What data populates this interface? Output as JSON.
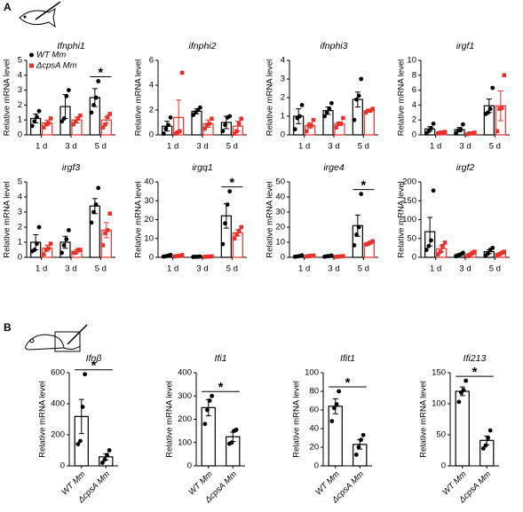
{
  "panel_labels": [
    "A",
    "B"
  ],
  "chart_data": [
    {
      "type": "bar",
      "title": "Ifnphi1",
      "ylabel": "Relative mRNA level",
      "categories": [
        "1 d",
        "3 d",
        "5 d"
      ],
      "ylim": [
        0,
        5
      ],
      "yticks": [
        0,
        1,
        2,
        3,
        4,
        5
      ],
      "series": [
        {
          "name": "WT Mm",
          "color": "#000000",
          "marker": "circle",
          "values": [
            1.1,
            1.9,
            2.5
          ],
          "errors": [
            0.3,
            0.8,
            0.6
          ],
          "points": [
            [
              0.6,
              0.9,
              1.2,
              1.6
            ],
            [
              0.9,
              1.1,
              2.6,
              3.0
            ],
            [
              1.5,
              2.0,
              2.5,
              3.6
            ]
          ]
        },
        {
          "name": "ΔcpsA Mm",
          "color": "#e8312a",
          "marker": "square",
          "values": [
            0.8,
            1.0,
            1.0
          ],
          "errors": [
            0.2,
            0.2,
            0.2
          ],
          "points": [
            [
              0.5,
              0.7,
              0.8,
              1.1
            ],
            [
              0.7,
              0.9,
              1.1,
              1.3
            ],
            [
              0.5,
              0.7,
              1.2,
              1.4
            ]
          ]
        }
      ],
      "annotations": [
        {
          "text": "*",
          "category": "5 d"
        }
      ]
    },
    {
      "type": "bar",
      "title": "ifnphi2",
      "ylabel": "Relative mRNA level",
      "categories": [
        "1 d",
        "3 d",
        "5 d"
      ],
      "ylim": [
        0,
        6
      ],
      "yticks": [
        0,
        2,
        4,
        6
      ],
      "series": [
        {
          "color": "#000000",
          "marker": "circle",
          "values": [
            0.7,
            1.9,
            1.0
          ],
          "errors": [
            0.4,
            0.2,
            0.5
          ],
          "points": [
            [
              0.1,
              0.5,
              0.8,
              1.4
            ],
            [
              1.6,
              1.8,
              2.0,
              2.2
            ],
            [
              0.3,
              0.8,
              1.4,
              1.5
            ]
          ]
        },
        {
          "color": "#e8312a",
          "marker": "square",
          "values": [
            1.4,
            0.9,
            0.7
          ],
          "errors": [
            1.4,
            0.3,
            0.4
          ],
          "points": [
            [
              0.1,
              0.2,
              0.3,
              5.0
            ],
            [
              0.5,
              0.8,
              0.9,
              1.3
            ],
            [
              0.1,
              0.3,
              0.9,
              1.3
            ]
          ]
        }
      ]
    },
    {
      "type": "bar",
      "title": "ifnphi3",
      "ylabel": "Relative mRNA level",
      "categories": [
        "1 d",
        "3 d",
        "5 d"
      ],
      "ylim": [
        0,
        4
      ],
      "yticks": [
        0,
        1,
        2,
        3,
        4
      ],
      "series": [
        {
          "color": "#000000",
          "marker": "circle",
          "values": [
            1.0,
            1.3,
            1.9
          ],
          "errors": [
            0.4,
            0.2,
            0.4
          ],
          "points": [
            [
              0.3,
              0.9,
              1.0,
              1.6
            ],
            [
              1.0,
              1.2,
              1.4,
              1.7
            ],
            [
              0.8,
              1.9,
              2.1,
              3.0
            ]
          ]
        },
        {
          "color": "#e8312a",
          "marker": "square",
          "values": [
            0.5,
            0.6,
            1.3
          ],
          "errors": [
            0.15,
            0.1,
            0.05
          ],
          "points": [
            [
              0.2,
              0.5,
              0.5,
              0.8
            ],
            [
              0.4,
              0.6,
              0.6,
              0.9
            ],
            [
              1.2,
              1.3,
              1.3,
              1.4
            ]
          ]
        }
      ]
    },
    {
      "type": "bar",
      "title": "irgf1",
      "ylabel": "Relative mRNA level",
      "categories": [
        "1 d",
        "3 d",
        "5 d"
      ],
      "ylim": [
        0,
        10
      ],
      "yticks": [
        0,
        2,
        4,
        6,
        8,
        10
      ],
      "series": [
        {
          "color": "#000000",
          "marker": "circle",
          "values": [
            0.8,
            0.7,
            3.9
          ],
          "errors": [
            0.3,
            0.3,
            0.9
          ],
          "points": [
            [
              0.2,
              0.5,
              0.9,
              1.5
            ],
            [
              0.2,
              0.6,
              0.7,
              1.4
            ],
            [
              2.8,
              3.0,
              3.5,
              6.3
            ]
          ]
        },
        {
          "color": "#e8312a",
          "marker": "square",
          "values": [
            0.3,
            0.2,
            3.9
          ],
          "errors": [
            0.1,
            0.1,
            2.0
          ],
          "points": [
            [
              0.2,
              0.3,
              0.3,
              0.4
            ],
            [
              0.1,
              0.2,
              0.2,
              0.3
            ],
            [
              0.5,
              3.5,
              3.6,
              8.0
            ]
          ]
        }
      ]
    },
    {
      "type": "bar",
      "title": "irgf3",
      "ylabel": "Relative mRNA level",
      "categories": [
        "1 d",
        "3 d",
        "5 d"
      ],
      "ylim": [
        0,
        5
      ],
      "yticks": [
        0,
        1,
        2,
        3,
        4,
        5
      ],
      "series": [
        {
          "color": "#000000",
          "marker": "circle",
          "values": [
            1.0,
            1.0,
            3.4
          ],
          "errors": [
            0.5,
            0.4,
            0.5
          ],
          "points": [
            [
              0.4,
              0.5,
              0.9,
              2.0
            ],
            [
              0.3,
              0.8,
              1.2,
              1.8
            ],
            [
              2.3,
              3.0,
              3.5,
              4.6
            ]
          ]
        },
        {
          "color": "#e8312a",
          "marker": "square",
          "values": [
            0.6,
            0.4,
            1.8
          ],
          "errors": [
            0.2,
            0.1,
            0.5
          ],
          "points": [
            [
              0.2,
              0.5,
              0.6,
              0.9
            ],
            [
              0.3,
              0.3,
              0.5,
              0.5
            ],
            [
              0.8,
              1.6,
              1.8,
              2.9
            ]
          ]
        }
      ]
    },
    {
      "type": "bar",
      "title": "irgq1",
      "ylabel": "Relative mRNA level",
      "categories": [
        "1 d",
        "3 d",
        "5 d"
      ],
      "ylim": [
        0,
        40
      ],
      "yticks": [
        0,
        10,
        20,
        30,
        40
      ],
      "series": [
        {
          "color": "#000000",
          "marker": "circle",
          "values": [
            0.8,
            0.3,
            22
          ],
          "errors": [
            0.3,
            0.1,
            6.5
          ],
          "points": [
            [
              0.4,
              0.6,
              0.9,
              1.3
            ],
            [
              0.2,
              0.3,
              0.3,
              0.4
            ],
            [
              7,
              18,
              28,
              35
            ]
          ]
        },
        {
          "color": "#e8312a",
          "marker": "square",
          "values": [
            0.8,
            0.4,
            13
          ],
          "errors": [
            0.3,
            0.1,
            1.5
          ],
          "points": [
            [
              0.5,
              0.7,
              0.8,
              1.2
            ],
            [
              0.3,
              0.4,
              0.4,
              0.5
            ],
            [
              10,
              12,
              14,
              16
            ]
          ]
        }
      ],
      "annotations": [
        {
          "text": "*",
          "category": "5 d"
        }
      ]
    },
    {
      "type": "bar",
      "title": "irge4",
      "ylabel": "Relative mRNA level",
      "categories": [
        "1 d",
        "3 d",
        "5 d"
      ],
      "ylim": [
        0,
        50
      ],
      "yticks": [
        0,
        10,
        20,
        30,
        40,
        50
      ],
      "series": [
        {
          "color": "#000000",
          "marker": "circle",
          "values": [
            0.8,
            0.8,
            21
          ],
          "errors": [
            0.3,
            0.3,
            7
          ],
          "points": [
            [
              0.4,
              0.6,
              0.9,
              1.3
            ],
            [
              0.4,
              0.7,
              0.9,
              1.2
            ],
            [
              8,
              15,
              20,
              42
            ]
          ]
        },
        {
          "color": "#e8312a",
          "marker": "square",
          "values": [
            0.9,
            0.6,
            9.5
          ],
          "errors": [
            0.2,
            0.2,
            0.6
          ],
          "points": [
            [
              0.6,
              0.8,
              1.0,
              1.2
            ],
            [
              0.4,
              0.5,
              0.7,
              0.8
            ],
            [
              8.5,
              9.0,
              9.8,
              10.7
            ]
          ]
        }
      ],
      "annotations": [
        {
          "text": "*",
          "category": "5 d"
        }
      ]
    },
    {
      "type": "bar",
      "title": "irgf2",
      "ylabel": "Relative mRNA level",
      "categories": [
        "1 d",
        "3 d",
        "5 d"
      ],
      "ylim": [
        0,
        200
      ],
      "yticks": [
        0,
        50,
        100,
        150,
        200
      ],
      "series": [
        {
          "color": "#000000",
          "marker": "circle",
          "values": [
            68,
            7,
            15
          ],
          "errors": [
            38,
            3,
            5
          ],
          "points": [
            [
              20,
              30,
              45,
              177
            ],
            [
              3,
              5,
              8,
              12
            ],
            [
              5,
              10,
              20,
              25
            ]
          ]
        },
        {
          "color": "#e8312a",
          "marker": "square",
          "values": [
            23,
            9,
            10
          ],
          "errors": [
            8,
            3,
            3
          ],
          "points": [
            [
              8,
              15,
              30,
              39
            ],
            [
              3,
              6,
              12,
              15
            ],
            [
              5,
              8,
              12,
              15
            ]
          ]
        }
      ]
    },
    {
      "type": "bar",
      "title": "Ifnβ",
      "ylabel": "Relative mRNA level",
      "categories": [
        "WT Mm",
        "ΔcpsA Mm"
      ],
      "ylim": [
        0,
        600
      ],
      "yticks": [
        0,
        200,
        400,
        600
      ],
      "series": [
        {
          "color": "#000000",
          "marker": "circle",
          "values": [
            318,
            58
          ],
          "errors": [
            110,
            20
          ],
          "points": [
            [
              140,
              160,
              380,
              590
            ],
            [
              20,
              40,
              70,
              100
            ]
          ]
        }
      ],
      "annotations": [
        {
          "text": "*"
        }
      ]
    },
    {
      "type": "bar",
      "title": "Ifi1",
      "ylabel": "Relative mRNA level",
      "categories": [
        "WT Mm",
        "ΔcpsA Mm"
      ],
      "ylim": [
        0,
        400
      ],
      "yticks": [
        0,
        100,
        200,
        300,
        400
      ],
      "series": [
        {
          "color": "#000000",
          "marker": "circle",
          "values": [
            250,
            125
          ],
          "errors": [
            35,
            20
          ],
          "points": [
            [
              180,
              240,
              280,
              300
            ],
            [
              95,
              100,
              150,
              155
            ]
          ]
        }
      ],
      "annotations": [
        {
          "text": "*"
        }
      ]
    },
    {
      "type": "bar",
      "title": "Ifit1",
      "ylabel": "Relative mRNA level",
      "categories": [
        "WT Mm",
        "ΔcpsA Mm"
      ],
      "ylim": [
        0,
        100
      ],
      "yticks": [
        0,
        20,
        40,
        60,
        80,
        100
      ],
      "series": [
        {
          "color": "#000000",
          "marker": "circle",
          "values": [
            64,
            23
          ],
          "errors": [
            8,
            5
          ],
          "points": [
            [
              48,
              62,
              66,
              80
            ],
            [
              12,
              20,
              28,
              33
            ]
          ]
        }
      ],
      "annotations": [
        {
          "text": "*"
        }
      ]
    },
    {
      "type": "bar",
      "title": "Ifi213",
      "ylabel": "Relative mRNA level",
      "categories": [
        "WT Mm",
        "ΔcpsA Mm"
      ],
      "ylim": [
        0,
        150
      ],
      "yticks": [
        0,
        50,
        100,
        150
      ],
      "series": [
        {
          "color": "#000000",
          "marker": "circle",
          "values": [
            120,
            41
          ],
          "errors": [
            7,
            7
          ],
          "points": [
            [
              103,
              118,
              122,
              137
            ],
            [
              28,
              33,
              45,
              57
            ]
          ]
        }
      ],
      "annotations": [
        {
          "text": "*"
        }
      ]
    }
  ]
}
